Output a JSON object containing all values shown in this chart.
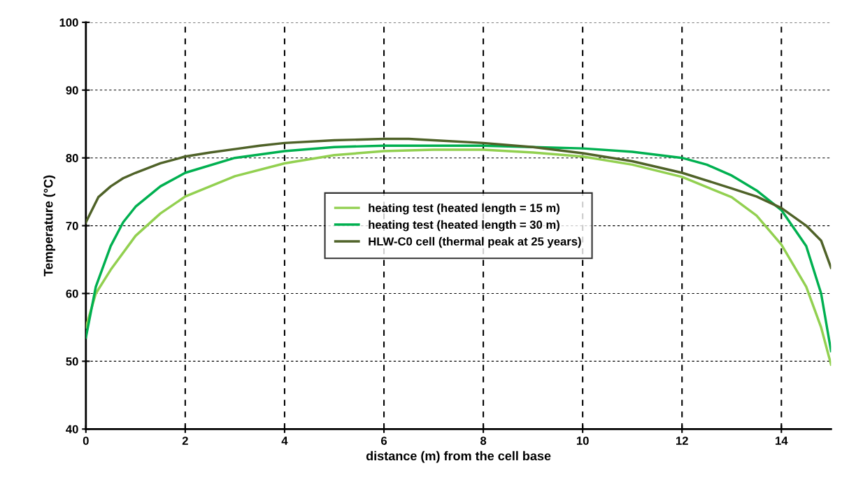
{
  "chart_data": {
    "type": "line",
    "xlabel": "distance (m) from the cell base",
    "ylabel": "Temperature (°C)",
    "xlim": [
      0,
      15
    ],
    "xticks": [
      0,
      2,
      4,
      6,
      8,
      10,
      12,
      14
    ],
    "ylim": [
      40,
      100
    ],
    "yticks": [
      40,
      50,
      60,
      70,
      80,
      90,
      100
    ],
    "grid": true,
    "legend": "center",
    "marker": "none",
    "line_style": "solid",
    "series": [
      {
        "name": "heating test (heated length = 15 m)",
        "color": "#92d050",
        "x": [
          0,
          0.2,
          0.5,
          1,
          1.5,
          2,
          3,
          4,
          5,
          6,
          7,
          8,
          9,
          10,
          11,
          12,
          13,
          13.5,
          14,
          14.5,
          14.8,
          15
        ],
        "values": [
          55,
          60,
          63.5,
          68.5,
          71.8,
          74.3,
          77.3,
          79.2,
          80.4,
          81,
          81.2,
          81.2,
          80.8,
          80.2,
          79,
          77.2,
          74.2,
          71.5,
          67.2,
          61,
          55,
          49.5
        ]
      },
      {
        "name": "heating test (heated length = 30 m)",
        "color": "#00b050",
        "x": [
          0,
          0.2,
          0.5,
          0.75,
          1,
          1.5,
          2,
          3,
          4,
          5,
          6,
          7,
          8,
          9,
          10,
          11,
          12,
          12.5,
          13,
          13.5,
          14,
          14.5,
          14.8,
          15
        ],
        "values": [
          53.5,
          61,
          67,
          70.5,
          72.8,
          75.8,
          77.8,
          80,
          81,
          81.6,
          81.8,
          81.8,
          81.8,
          81.6,
          81.4,
          80.9,
          80,
          79,
          77.4,
          75.2,
          72.3,
          67,
          60,
          51.5
        ]
      },
      {
        "name": "HLW-C0 cell (thermal peak at 25 years)",
        "color": "#4f6228",
        "x": [
          0,
          0.25,
          0.5,
          0.75,
          1,
          1.5,
          2,
          2.5,
          3,
          3.5,
          4,
          5,
          6,
          6.5,
          7,
          8,
          9,
          10,
          11,
          12,
          13,
          13.5,
          14,
          14.5,
          14.8,
          15
        ],
        "values": [
          70.5,
          74.2,
          75.8,
          77,
          77.8,
          79.2,
          80.2,
          80.8,
          81.3,
          81.8,
          82.2,
          82.6,
          82.8,
          82.8,
          82.6,
          82.2,
          81.6,
          80.7,
          79.5,
          77.8,
          75.5,
          74.3,
          72.6,
          70,
          67.8,
          63.8
        ]
      }
    ]
  }
}
